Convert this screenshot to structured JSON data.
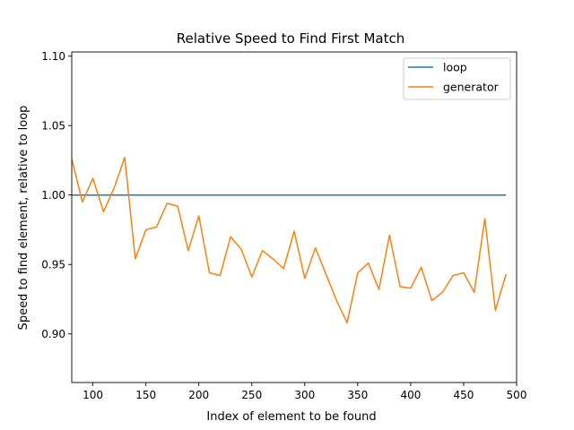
{
  "chart_data": {
    "type": "line",
    "title": "Relative Speed to Find First Match",
    "xlabel": "Index of element to be found",
    "ylabel": "Speed to find element, relative to loop",
    "xlim": [
      80,
      500
    ],
    "ylim": [
      0.865,
      1.103
    ],
    "xticks": [
      100,
      150,
      200,
      250,
      300,
      350,
      400,
      450,
      500
    ],
    "xtick_labels": [
      "100",
      "150",
      "200",
      "250",
      "300",
      "350",
      "400",
      "450",
      "500"
    ],
    "yticks": [
      0.9,
      0.95,
      1.0,
      1.05,
      1.1
    ],
    "ytick_labels": [
      "0.90",
      "0.95",
      "1.00",
      "1.05",
      "1.10"
    ],
    "grid": false,
    "legend_position": "top-right",
    "x": [
      80,
      90,
      100,
      110,
      120,
      130,
      140,
      150,
      160,
      170,
      180,
      190,
      200,
      210,
      220,
      230,
      240,
      250,
      260,
      270,
      280,
      290,
      300,
      310,
      320,
      330,
      340,
      350,
      360,
      370,
      380,
      390,
      400,
      410,
      420,
      430,
      440,
      450,
      460,
      470,
      480,
      490
    ],
    "series": [
      {
        "name": "loop",
        "color": "#1f77b4",
        "values": [
          1.0,
          1.0,
          1.0,
          1.0,
          1.0,
          1.0,
          1.0,
          1.0,
          1.0,
          1.0,
          1.0,
          1.0,
          1.0,
          1.0,
          1.0,
          1.0,
          1.0,
          1.0,
          1.0,
          1.0,
          1.0,
          1.0,
          1.0,
          1.0,
          1.0,
          1.0,
          1.0,
          1.0,
          1.0,
          1.0,
          1.0,
          1.0,
          1.0,
          1.0,
          1.0,
          1.0,
          1.0,
          1.0,
          1.0,
          1.0,
          1.0,
          1.0
        ]
      },
      {
        "name": "generator",
        "color": "#ff7f0e",
        "values": [
          1.026,
          0.995,
          1.012,
          0.988,
          1.005,
          1.027,
          0.954,
          0.975,
          0.977,
          0.994,
          0.992,
          0.96,
          0.985,
          0.944,
          0.942,
          0.97,
          0.961,
          0.941,
          0.96,
          0.954,
          0.947,
          0.974,
          0.94,
          0.962,
          0.943,
          0.924,
          0.908,
          0.944,
          0.951,
          0.932,
          0.971,
          0.934,
          0.933,
          0.948,
          0.924,
          0.93,
          0.942,
          0.944,
          0.93,
          0.983,
          0.917,
          0.943
        ]
      }
    ]
  }
}
